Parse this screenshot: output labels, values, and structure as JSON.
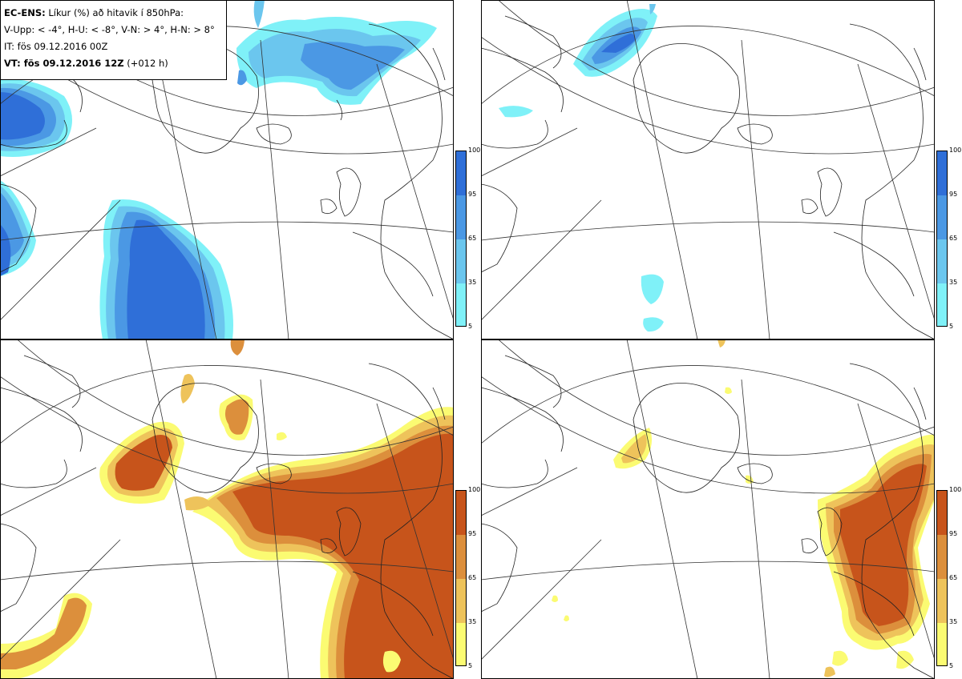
{
  "info": {
    "model": "EC-ENS:",
    "title": "Líkur (%) að hitavik í 850hPa:",
    "thresholds": "V-Upp: < -4°, H-U: < -8°, V-N: > 4°, H-N: > 8°",
    "issue_time": "IT: fös 09.12.2016 00Z",
    "valid_label": "VT: fös 09.12.2016 12Z",
    "lead": "(+012 h)"
  },
  "legend_blue": {
    "ticks": [
      "100",
      "95",
      "65",
      "35",
      "5"
    ],
    "colors": [
      "#2f6fd8",
      "#4b98e4",
      "#6bc6ee",
      "#7ff1f8"
    ]
  },
  "legend_orange": {
    "ticks": [
      "100",
      "95",
      "65",
      "35",
      "5"
    ],
    "colors": [
      "#c7541b",
      "#dc8f3c",
      "#eec35b",
      "#fbfb72"
    ]
  },
  "chart_data": [
    {
      "type": "map",
      "panel": "V-Upp",
      "field": "probability cold anomaly < -4°",
      "scale": "blue",
      "levels": [
        5,
        35,
        65,
        95,
        100
      ]
    },
    {
      "type": "map",
      "panel": "H-U",
      "field": "probability cold anomaly < -8°",
      "scale": "blue",
      "levels": [
        5,
        35,
        65,
        95,
        100
      ]
    },
    {
      "type": "map",
      "panel": "V-N",
      "field": "probability warm anomaly > 4°",
      "scale": "orange",
      "levels": [
        5,
        35,
        65,
        95,
        100
      ]
    },
    {
      "type": "map",
      "panel": "H-N",
      "field": "probability warm anomaly > 8°",
      "scale": "orange",
      "levels": [
        5,
        35,
        65,
        95,
        100
      ]
    }
  ]
}
